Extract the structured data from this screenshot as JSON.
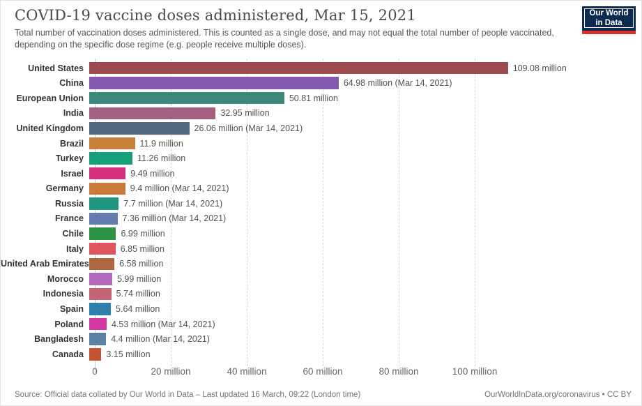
{
  "header": {
    "title": "COVID-19 vaccine doses administered, Mar 15, 2021",
    "subtitle": "Total number of vaccination doses administered. This is counted as a single dose, and may not equal the total number of people vaccinated, depending on the specific dose regime (e.g. people receive multiple doses).",
    "logo": {
      "line1": "Our World",
      "line2": "in Data",
      "bg_color": "#0e2a4e",
      "stripe_color": "#d8352a"
    }
  },
  "chart_data": {
    "type": "bar",
    "orientation": "horizontal",
    "title": "COVID-19 vaccine doses administered, Mar 15, 2021",
    "xlabel": "",
    "ylabel": "",
    "xlim": [
      0,
      142
    ],
    "grid": "dashed-vertical",
    "categories": [
      "United States",
      "China",
      "European Union",
      "India",
      "United Kingdom",
      "Brazil",
      "Turkey",
      "Israel",
      "Germany",
      "Russia",
      "France",
      "Chile",
      "Italy",
      "United Arab Emirates",
      "Morocco",
      "Indonesia",
      "Spain",
      "Poland",
      "Bangladesh",
      "Canada"
    ],
    "values": [
      109.08,
      64.98,
      50.81,
      32.95,
      26.06,
      11.9,
      11.26,
      9.49,
      9.4,
      7.7,
      7.36,
      6.99,
      6.85,
      6.58,
      5.99,
      5.74,
      5.64,
      4.53,
      4.4,
      3.15
    ],
    "value_unit": "million doses",
    "value_labels": [
      "109.08 million",
      "64.98 million (Mar 14, 2021)",
      "50.81 million",
      "32.95 million",
      "26.06 million (Mar 14, 2021)",
      "11.9 million",
      "11.26 million",
      "9.49 million",
      "9.4 million (Mar 14, 2021)",
      "7.7 million (Mar 14, 2021)",
      "7.36 million (Mar 14, 2021)",
      "6.99 million",
      "6.85 million",
      "6.58 million",
      "5.99 million",
      "5.74 million",
      "5.64 million",
      "4.53 million (Mar 14, 2021)",
      "4.4 million (Mar 14, 2021)",
      "3.15 million"
    ],
    "bar_colors": [
      "#9e4b50",
      "#8159ae",
      "#3d8a7d",
      "#a5607f",
      "#52687f",
      "#c5803c",
      "#18a07b",
      "#d42e7e",
      "#ca7939",
      "#21967e",
      "#6479ad",
      "#2f9144",
      "#e0545f",
      "#ad6742",
      "#b268bf",
      "#c56477",
      "#2d80a9",
      "#d53aa2",
      "#5b80a4",
      "#c35532"
    ],
    "x_ticks": [
      {
        "value": 0,
        "label": "0"
      },
      {
        "value": 20,
        "label": "20 million"
      },
      {
        "value": 40,
        "label": "40 million"
      },
      {
        "value": 60,
        "label": "60 million"
      },
      {
        "value": 80,
        "label": "80 million"
      },
      {
        "value": 100,
        "label": "100 million"
      }
    ]
  },
  "footer": {
    "source": "Source: Official data collated by Our World in Data – Last updated 16 March, 09:22 (London time)",
    "link": "OurWorldInData.org/coronavirus • CC BY"
  }
}
